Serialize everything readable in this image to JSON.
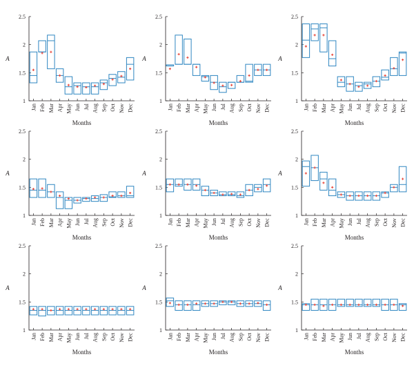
{
  "chart_data": [
    {
      "type": "box",
      "xlabel": "Months",
      "ylabel": "A",
      "ylim": [
        1,
        2.5
      ],
      "yticks": [
        "1",
        "1.5",
        "2",
        "2.5"
      ],
      "categories": [
        "Jan",
        "Feb",
        "Mar",
        "Apr",
        "May",
        "Jun",
        "Jul",
        "Aug",
        "Sep",
        "Oct",
        "Nov",
        "Dec"
      ],
      "boxes": [
        [
          1.32,
          1.87
        ],
        [
          1.87,
          2.07
        ],
        [
          1.57,
          2.17
        ],
        [
          1.33,
          1.57
        ],
        [
          1.12,
          1.43
        ],
        [
          1.12,
          1.32
        ],
        [
          1.12,
          1.32
        ],
        [
          1.12,
          1.32
        ],
        [
          1.2,
          1.37
        ],
        [
          1.27,
          1.47
        ],
        [
          1.32,
          1.52
        ],
        [
          1.37,
          1.77
        ]
      ],
      "medians": [
        1.45,
        1.87,
        2.07,
        1.45,
        1.25,
        1.27,
        1.25,
        1.25,
        1.32,
        1.4,
        1.42,
        1.65
      ],
      "means": [
        1.55,
        1.85,
        1.87,
        1.45,
        1.28,
        1.25,
        1.24,
        1.27,
        1.3,
        1.38,
        1.44,
        1.57
      ],
      "box_color": "#2e86c1",
      "mean_color": "#e8463a"
    },
    {
      "type": "box",
      "xlabel": "Months",
      "ylabel": "A",
      "ylim": [
        1,
        2.5
      ],
      "yticks": [
        "1",
        "1.5",
        "2",
        "2.5"
      ],
      "categories": [
        "Jan",
        "Feb",
        "Mar",
        "Apr",
        "May",
        "Jun",
        "Jul",
        "Aug",
        "Sep",
        "Oct",
        "Nov",
        "Dec"
      ],
      "boxes": [
        [
          1.62,
          1.64
        ],
        [
          1.65,
          2.17
        ],
        [
          1.65,
          2.1
        ],
        [
          1.45,
          1.65
        ],
        [
          1.35,
          1.45
        ],
        [
          1.2,
          1.45
        ],
        [
          1.15,
          1.33
        ],
        [
          1.22,
          1.33
        ],
        [
          1.33,
          1.45
        ],
        [
          1.33,
          1.65
        ],
        [
          1.45,
          1.65
        ],
        [
          1.45,
          1.65
        ]
      ],
      "medians": [
        1.64,
        1.65,
        1.65,
        1.65,
        1.43,
        1.33,
        1.25,
        1.33,
        1.33,
        1.35,
        1.55,
        1.55
      ],
      "means": [
        1.57,
        1.83,
        1.77,
        1.6,
        1.42,
        1.32,
        1.27,
        1.28,
        1.35,
        1.45,
        1.55,
        1.55
      ],
      "box_color": "#2e86c1",
      "mean_color": "#e8463a"
    },
    {
      "type": "box",
      "xlabel": "Months",
      "ylabel": "A",
      "ylim": [
        1,
        2.5
      ],
      "yticks": [
        "1",
        "1.5",
        "2",
        "2.5"
      ],
      "categories": [
        "Jan",
        "Feb",
        "Mar",
        "Apr",
        "May",
        "Jun",
        "Jul",
        "Aug",
        "Sep",
        "Oct",
        "Nov",
        "Dec"
      ],
      "boxes": [
        [
          1.77,
          2.37
        ],
        [
          2.07,
          2.37
        ],
        [
          1.87,
          2.37
        ],
        [
          1.62,
          2.07
        ],
        [
          1.25,
          1.43
        ],
        [
          1.17,
          1.43
        ],
        [
          1.17,
          1.33
        ],
        [
          1.22,
          1.33
        ],
        [
          1.25,
          1.43
        ],
        [
          1.37,
          1.55
        ],
        [
          1.45,
          1.77
        ],
        [
          1.45,
          1.87
        ]
      ],
      "medians": [
        2.08,
        2.28,
        2.3,
        1.75,
        1.33,
        1.3,
        1.27,
        1.3,
        1.35,
        1.42,
        1.57,
        1.85
      ],
      "means": [
        1.97,
        2.17,
        2.17,
        1.82,
        1.37,
        1.3,
        1.25,
        1.27,
        1.35,
        1.45,
        1.58,
        1.73
      ],
      "box_color": "#2e86c1",
      "mean_color": "#e8463a"
    },
    {
      "type": "box",
      "xlabel": "Months",
      "ylabel": "A",
      "ylim": [
        1,
        2.5
      ],
      "yticks": [
        "1",
        "1.5",
        "2",
        "2.5"
      ],
      "categories": [
        "Jan",
        "Feb",
        "Mar",
        "Apr",
        "May",
        "Jun",
        "Jul",
        "Aug",
        "Sep",
        "Oct",
        "Nov",
        "Dec"
      ],
      "boxes": [
        [
          1.32,
          1.65
        ],
        [
          1.32,
          1.65
        ],
        [
          1.32,
          1.55
        ],
        [
          1.12,
          1.42
        ],
        [
          1.12,
          1.32
        ],
        [
          1.22,
          1.32
        ],
        [
          1.25,
          1.32
        ],
        [
          1.25,
          1.35
        ],
        [
          1.25,
          1.37
        ],
        [
          1.32,
          1.42
        ],
        [
          1.32,
          1.42
        ],
        [
          1.32,
          1.52
        ]
      ],
      "medians": [
        1.45,
        1.45,
        1.42,
        1.32,
        1.27,
        1.27,
        1.3,
        1.3,
        1.32,
        1.33,
        1.35,
        1.35
      ],
      "means": [
        1.47,
        1.48,
        1.42,
        1.35,
        1.3,
        1.27,
        1.3,
        1.32,
        1.32,
        1.35,
        1.35,
        1.4
      ],
      "box_color": "#2e86c1",
      "mean_color": "#e8463a"
    },
    {
      "type": "box",
      "xlabel": "Months",
      "ylabel": "A",
      "ylim": [
        1,
        2.5
      ],
      "yticks": [
        "1",
        "1.5",
        "2",
        "2.5"
      ],
      "categories": [
        "Jan",
        "Feb",
        "Mar",
        "Apr",
        "May",
        "Jun",
        "Jul",
        "Aug",
        "Sep",
        "Oct",
        "Nov",
        "Dec"
      ],
      "boxes": [
        [
          1.42,
          1.65
        ],
        [
          1.52,
          1.65
        ],
        [
          1.45,
          1.65
        ],
        [
          1.45,
          1.65
        ],
        [
          1.35,
          1.52
        ],
        [
          1.35,
          1.45
        ],
        [
          1.35,
          1.42
        ],
        [
          1.35,
          1.42
        ],
        [
          1.32,
          1.42
        ],
        [
          1.35,
          1.55
        ],
        [
          1.42,
          1.55
        ],
        [
          1.42,
          1.65
        ]
      ],
      "medians": [
        1.55,
        1.55,
        1.55,
        1.55,
        1.45,
        1.4,
        1.37,
        1.37,
        1.35,
        1.45,
        1.5,
        1.55
      ],
      "means": [
        1.55,
        1.55,
        1.55,
        1.53,
        1.45,
        1.4,
        1.37,
        1.38,
        1.37,
        1.45,
        1.47,
        1.53
      ],
      "box_color": "#2e86c1",
      "mean_color": "#e8463a"
    },
    {
      "type": "box",
      "xlabel": "Months",
      "ylabel": "A",
      "ylim": [
        1,
        2.5
      ],
      "yticks": [
        "1",
        "1.5",
        "2",
        "2.5"
      ],
      "categories": [
        "Jan",
        "Feb",
        "Mar",
        "Apr",
        "May",
        "Jun",
        "Jul",
        "Aug",
        "Sep",
        "Oct",
        "Nov",
        "Dec"
      ],
      "boxes": [
        [
          1.52,
          1.97
        ],
        [
          1.62,
          2.07
        ],
        [
          1.45,
          1.77
        ],
        [
          1.35,
          1.65
        ],
        [
          1.32,
          1.42
        ],
        [
          1.27,
          1.42
        ],
        [
          1.27,
          1.42
        ],
        [
          1.27,
          1.42
        ],
        [
          1.27,
          1.42
        ],
        [
          1.32,
          1.42
        ],
        [
          1.42,
          1.55
        ],
        [
          1.42,
          1.87
        ]
      ],
      "medians": [
        1.87,
        1.85,
        1.65,
        1.45,
        1.37,
        1.35,
        1.35,
        1.35,
        1.35,
        1.4,
        1.5,
        1.55
      ],
      "means": [
        1.75,
        1.85,
        1.58,
        1.5,
        1.37,
        1.35,
        1.35,
        1.35,
        1.35,
        1.4,
        1.5,
        1.65
      ],
      "box_color": "#2e86c1",
      "mean_color": "#e8463a"
    },
    {
      "type": "box",
      "xlabel": "Months",
      "ylabel": "A",
      "ylim": [
        1,
        2.5
      ],
      "yticks": [
        "1",
        "1.5",
        "2",
        "2.5"
      ],
      "categories": [
        "Jan",
        "Feb",
        "Mar",
        "Apr",
        "May",
        "Jun",
        "Jul",
        "Aug",
        "Sep",
        "Oct",
        "Nov",
        "Dec"
      ],
      "boxes": [
        [
          1.27,
          1.42
        ],
        [
          1.25,
          1.42
        ],
        [
          1.27,
          1.42
        ],
        [
          1.27,
          1.42
        ],
        [
          1.27,
          1.42
        ],
        [
          1.27,
          1.42
        ],
        [
          1.27,
          1.42
        ],
        [
          1.27,
          1.42
        ],
        [
          1.27,
          1.42
        ],
        [
          1.27,
          1.42
        ],
        [
          1.27,
          1.42
        ],
        [
          1.27,
          1.42
        ]
      ],
      "medians": [
        1.35,
        1.35,
        1.35,
        1.35,
        1.35,
        1.35,
        1.35,
        1.35,
        1.35,
        1.35,
        1.35,
        1.35
      ],
      "means": [
        1.37,
        1.37,
        1.35,
        1.37,
        1.37,
        1.37,
        1.37,
        1.37,
        1.37,
        1.37,
        1.37,
        1.37
      ],
      "box_color": "#2e86c1",
      "mean_color": "#e8463a"
    },
    {
      "type": "box",
      "xlabel": "Months",
      "ylabel": "A",
      "ylim": [
        1,
        2.5
      ],
      "yticks": [
        "1",
        "1.5",
        "2",
        "2.5"
      ],
      "categories": [
        "Jan",
        "Feb",
        "Mar",
        "Apr",
        "May",
        "Jun",
        "Jul",
        "Aug",
        "Sep",
        "Oct",
        "Nov",
        "Dec"
      ],
      "boxes": [
        [
          1.42,
          1.57
        ],
        [
          1.35,
          1.52
        ],
        [
          1.35,
          1.52
        ],
        [
          1.35,
          1.52
        ],
        [
          1.42,
          1.52
        ],
        [
          1.42,
          1.52
        ],
        [
          1.45,
          1.52
        ],
        [
          1.45,
          1.52
        ],
        [
          1.42,
          1.52
        ],
        [
          1.42,
          1.52
        ],
        [
          1.42,
          1.52
        ],
        [
          1.35,
          1.52
        ]
      ],
      "medians": [
        1.52,
        1.45,
        1.45,
        1.45,
        1.47,
        1.47,
        1.5,
        1.5,
        1.47,
        1.47,
        1.47,
        1.45
      ],
      "means": [
        1.48,
        1.45,
        1.45,
        1.47,
        1.47,
        1.47,
        1.5,
        1.5,
        1.47,
        1.47,
        1.48,
        1.45
      ],
      "box_color": "#2e86c1",
      "mean_color": "#e8463a"
    },
    {
      "type": "box",
      "xlabel": "Months",
      "ylabel": "A",
      "ylim": [
        1,
        2.5
      ],
      "yticks": [
        "1",
        "1.5",
        "2",
        "2.5"
      ],
      "categories": [
        "Jan",
        "Feb",
        "Mar",
        "Apr",
        "May",
        "Jun",
        "Jul",
        "Aug",
        "Sep",
        "Oct",
        "Nov",
        "Dec"
      ],
      "boxes": [
        [
          1.35,
          1.47
        ],
        [
          1.35,
          1.55
        ],
        [
          1.35,
          1.55
        ],
        [
          1.35,
          1.55
        ],
        [
          1.42,
          1.55
        ],
        [
          1.42,
          1.55
        ],
        [
          1.42,
          1.55
        ],
        [
          1.42,
          1.55
        ],
        [
          1.42,
          1.55
        ],
        [
          1.35,
          1.55
        ],
        [
          1.35,
          1.55
        ],
        [
          1.35,
          1.47
        ]
      ],
      "medians": [
        1.45,
        1.45,
        1.45,
        1.45,
        1.45,
        1.45,
        1.45,
        1.45,
        1.45,
        1.45,
        1.45,
        1.45
      ],
      "means": [
        1.45,
        1.45,
        1.43,
        1.45,
        1.45,
        1.45,
        1.45,
        1.45,
        1.45,
        1.45,
        1.45,
        1.43
      ],
      "box_color": "#2e86c1",
      "mean_color": "#e8463a"
    }
  ]
}
